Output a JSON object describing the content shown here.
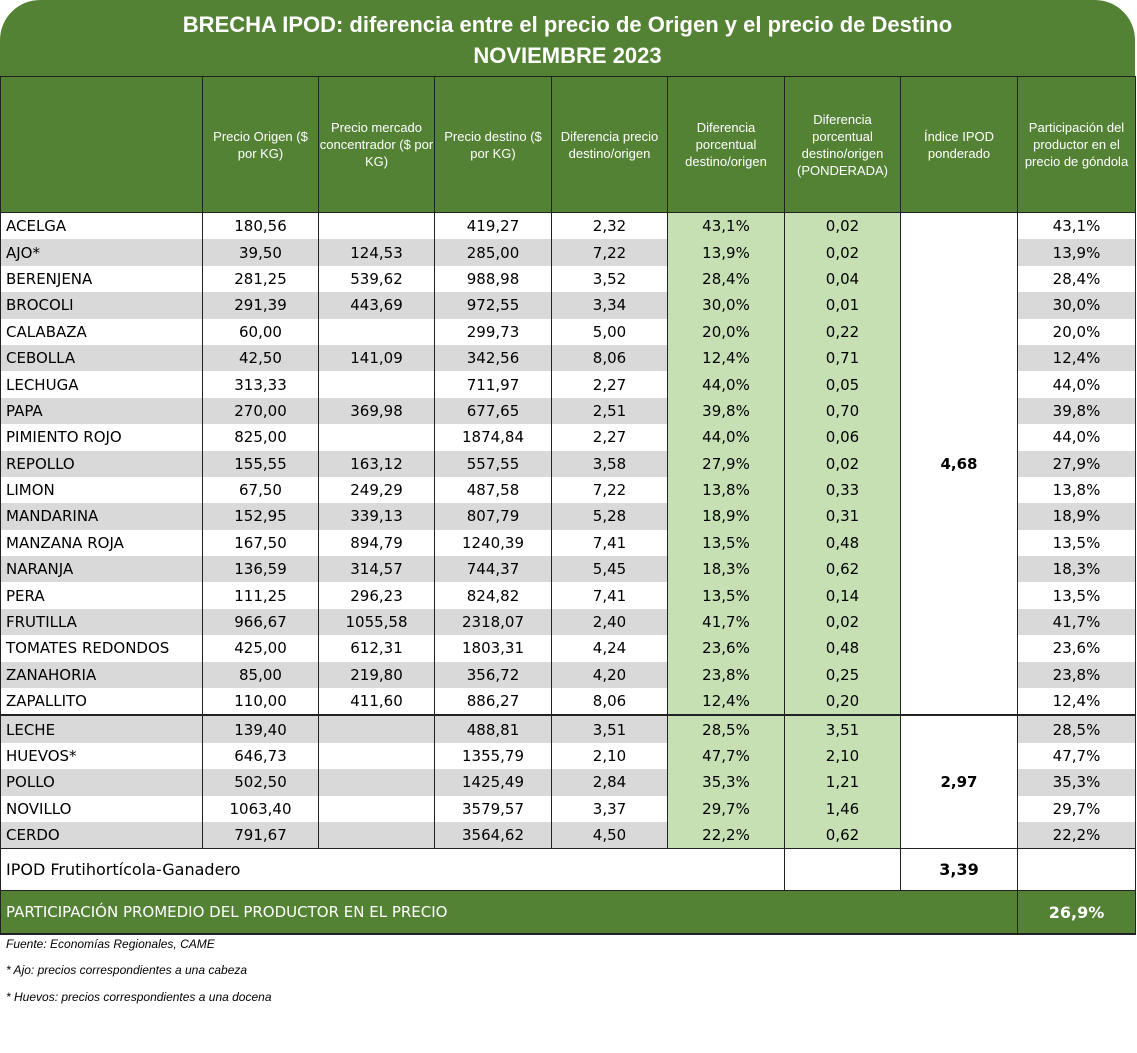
{
  "title": {
    "line1": "BRECHA IPOD: diferencia entre el precio de Origen y el precio de Destino",
    "line2": "NOVIEMBRE 2023"
  },
  "columns": [
    "",
    "Precio Origen ($ por KG)",
    "Precio mercado concentrador ($ por KG)",
    "Precio destino ($ por KG)",
    "Diferencia precio destino/origen",
    "Diferencia porcentual destino/origen",
    "Diferencia porcentual destino/origen (PONDERADA)",
    "Índice IPOD ponderado",
    "Participación del productor en el precio de góndola"
  ],
  "groups": [
    {
      "index": "4,68",
      "rows": [
        [
          "ACELGA",
          "180,56",
          "",
          "419,27",
          "2,32",
          "43,1%",
          "0,02",
          "43,1%"
        ],
        [
          "AJO*",
          "39,50",
          "124,53",
          "285,00",
          "7,22",
          "13,9%",
          "0,02",
          "13,9%"
        ],
        [
          "BERENJENA",
          "281,25",
          "539,62",
          "988,98",
          "3,52",
          "28,4%",
          "0,04",
          "28,4%"
        ],
        [
          "BROCOLI",
          "291,39",
          "443,69",
          "972,55",
          "3,34",
          "30,0%",
          "0,01",
          "30,0%"
        ],
        [
          "CALABAZA",
          "60,00",
          "",
          "299,73",
          "5,00",
          "20,0%",
          "0,22",
          "20,0%"
        ],
        [
          "CEBOLLA",
          "42,50",
          "141,09",
          "342,56",
          "8,06",
          "12,4%",
          "0,71",
          "12,4%"
        ],
        [
          "LECHUGA",
          "313,33",
          "",
          "711,97",
          "2,27",
          "44,0%",
          "0,05",
          "44,0%"
        ],
        [
          "PAPA",
          "270,00",
          "369,98",
          "677,65",
          "2,51",
          "39,8%",
          "0,70",
          "39,8%"
        ],
        [
          "PIMIENTO ROJO",
          "825,00",
          "",
          "1874,84",
          "2,27",
          "44,0%",
          "0,06",
          "44,0%"
        ],
        [
          "REPOLLO",
          "155,55",
          "163,12",
          "557,55",
          "3,58",
          "27,9%",
          "0,02",
          "27,9%"
        ],
        [
          "LIMON",
          "67,50",
          "249,29",
          "487,58",
          "7,22",
          "13,8%",
          "0,33",
          "13,8%"
        ],
        [
          "MANDARINA",
          "152,95",
          "339,13",
          "807,79",
          "5,28",
          "18,9%",
          "0,31",
          "18,9%"
        ],
        [
          "MANZANA ROJA",
          "167,50",
          "894,79",
          "1240,39",
          "7,41",
          "13,5%",
          "0,48",
          "13,5%"
        ],
        [
          "NARANJA",
          "136,59",
          "314,57",
          "744,37",
          "5,45",
          "18,3%",
          "0,62",
          "18,3%"
        ],
        [
          "PERA",
          "111,25",
          "296,23",
          "824,82",
          "7,41",
          "13,5%",
          "0,14",
          "13,5%"
        ],
        [
          "FRUTILLA",
          "966,67",
          "1055,58",
          "2318,07",
          "2,40",
          "41,7%",
          "0,02",
          "41,7%"
        ],
        [
          "TOMATES REDONDOS",
          "425,00",
          "612,31",
          "1803,31",
          "4,24",
          "23,6%",
          "0,48",
          "23,6%"
        ],
        [
          "ZANAHORIA",
          "85,00",
          "219,80",
          "356,72",
          "4,20",
          "23,8%",
          "0,25",
          "23,8%"
        ],
        [
          "ZAPALLITO",
          "110,00",
          "411,60",
          "886,27",
          "8,06",
          "12,4%",
          "0,20",
          "12,4%"
        ]
      ]
    },
    {
      "index": "2,97",
      "rows": [
        [
          "LECHE",
          "139,40",
          "",
          "488,81",
          "3,51",
          "28,5%",
          "3,51",
          "28,5%"
        ],
        [
          "HUEVOS*",
          "646,73",
          "",
          "1355,79",
          "2,10",
          "47,7%",
          "2,10",
          "47,7%"
        ],
        [
          "POLLO",
          "502,50",
          "",
          "1425,49",
          "2,84",
          "35,3%",
          "1,21",
          "35,3%"
        ],
        [
          "NOVILLO",
          "1063,40",
          "",
          "3579,57",
          "3,37",
          "29,7%",
          "1,46",
          "29,7%"
        ],
        [
          "CERDO",
          "791,67",
          "",
          "3564,62",
          "4,50",
          "22,2%",
          "0,62",
          "22,2%"
        ]
      ]
    }
  ],
  "ipod_total": {
    "label": "IPOD Frutihortícola-Ganadero",
    "value": "3,39"
  },
  "promedio": {
    "label": "PARTICIPACIÓN PROMEDIO DEL PRODUCTOR EN EL PRECIO",
    "value": "26,9%"
  },
  "notes": [
    "Fuente: Economías Regionales, CAME",
    "* Ajo: precios correspondientes a una cabeza",
    "* Huevos: precios correspondientes a una docena"
  ],
  "colors": {
    "header_green": "#548235",
    "light_green": "#c6e0b4",
    "row_gray": "#d9d9d9"
  }
}
